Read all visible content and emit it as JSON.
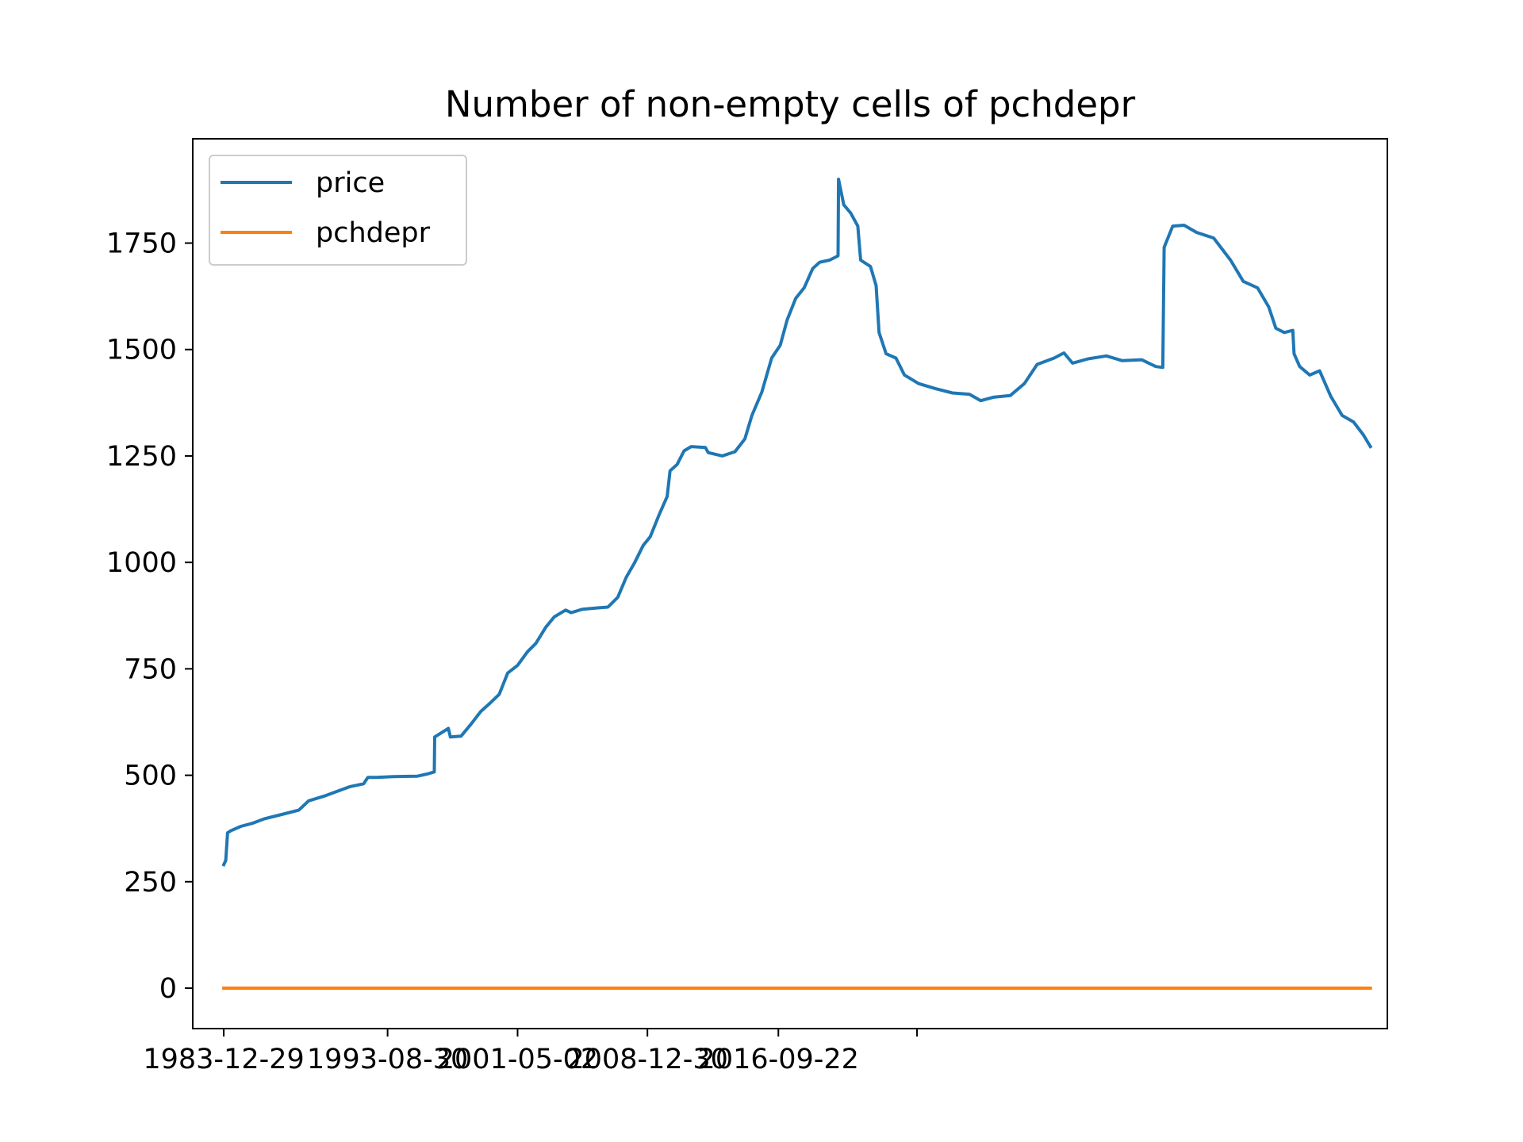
{
  "chart_data": {
    "type": "line",
    "title": "Number of non-empty cells of pchdepr",
    "xlabel": "",
    "ylabel": "",
    "x_ticks": [
      "1983-12-29",
      "1993-08-30",
      "2001-05-02",
      "2008-12-30",
      "2016-09-22",
      ""
    ],
    "y_ticks": [
      0,
      250,
      500,
      750,
      1000,
      1250,
      1500,
      1750
    ],
    "ylim": [
      -95,
      1995
    ],
    "grid": false,
    "legend_position": "top-left",
    "series": [
      {
        "name": "price",
        "color": "#1f77b4",
        "points": [
          [
            "1983-12-29",
            290
          ],
          [
            "1984-02-10",
            300
          ],
          [
            "1984-03-20",
            365
          ],
          [
            "1984-06-01",
            370
          ],
          [
            "1985-01-01",
            380
          ],
          [
            "1985-09-01",
            387
          ],
          [
            "1986-06-01",
            398
          ],
          [
            "1987-06-01",
            408
          ],
          [
            "1988-06-01",
            418
          ],
          [
            "1989-01-01",
            440
          ],
          [
            "1990-01-01",
            452
          ],
          [
            "1990-09-01",
            462
          ],
          [
            "1991-06-01",
            473
          ],
          [
            "1992-04-01",
            480
          ],
          [
            "1992-07-01",
            495
          ],
          [
            "1993-01-01",
            495
          ],
          [
            "1994-01-01",
            497
          ],
          [
            "1995-06-01",
            498
          ],
          [
            "1996-01-01",
            503
          ],
          [
            "1996-06-01",
            508
          ],
          [
            "1996-06-10",
            590
          ],
          [
            "1997-04-01",
            610
          ],
          [
            "1997-05-15",
            590
          ],
          [
            "1998-01-01",
            592
          ],
          [
            "1998-08-01",
            620
          ],
          [
            "1999-03-01",
            650
          ],
          [
            "1999-09-01",
            668
          ],
          [
            "2000-04-01",
            690
          ],
          [
            "2000-10-01",
            740
          ],
          [
            "2001-05-01",
            758
          ],
          [
            "2001-12-01",
            790
          ],
          [
            "2002-06-01",
            810
          ],
          [
            "2003-01-01",
            848
          ],
          [
            "2003-07-01",
            872
          ],
          [
            "2004-03-01",
            888
          ],
          [
            "2004-07-01",
            882
          ],
          [
            "2005-03-01",
            890
          ],
          [
            "2006-01-01",
            893
          ],
          [
            "2006-09-01",
            895
          ],
          [
            "2007-04-01",
            918
          ],
          [
            "2007-10-01",
            965
          ],
          [
            "2008-04-01",
            1000
          ],
          [
            "2008-10-01",
            1040
          ],
          [
            "2009-03-01",
            1060
          ],
          [
            "2009-09-01",
            1110
          ],
          [
            "2010-03-01",
            1155
          ],
          [
            "2010-05-01",
            1215
          ],
          [
            "2010-10-01",
            1230
          ],
          [
            "2011-03-01",
            1262
          ],
          [
            "2011-08-01",
            1272
          ],
          [
            "2012-06-01",
            1270
          ],
          [
            "2012-08-01",
            1258
          ],
          [
            "2013-06-01",
            1250
          ],
          [
            "2014-03-01",
            1260
          ],
          [
            "2014-10-01",
            1290
          ],
          [
            "2015-03-01",
            1345
          ],
          [
            "2015-10-01",
            1400
          ],
          [
            "2016-05-01",
            1480
          ],
          [
            "2016-11-01",
            1510
          ],
          [
            "2017-04-01",
            1570
          ],
          [
            "2017-10-01",
            1620
          ],
          [
            "2018-04-01",
            1645
          ],
          [
            "2018-10-01",
            1690
          ],
          [
            "2019-03-01",
            1705
          ],
          [
            "2019-10-01",
            1710
          ],
          [
            "2020-04-01",
            1720
          ],
          [
            "2020-04-10",
            1900
          ],
          [
            "2020-08-01",
            1840
          ],
          [
            "2021-01-01",
            1820
          ],
          [
            "2021-06-01",
            1790
          ],
          [
            "2021-08-01",
            1710
          ],
          [
            "2022-03-01",
            1695
          ],
          [
            "2022-07-01",
            1650
          ],
          [
            "2022-09-01",
            1540
          ],
          [
            "2023-02-01",
            1490
          ],
          [
            "2023-09-01",
            1480
          ],
          [
            "2024-03-01",
            1440
          ],
          [
            "2025-01-01",
            1420
          ],
          [
            "2026-01-01",
            1408
          ],
          [
            "2027-01-01",
            1398
          ],
          [
            "2028-01-01",
            1395
          ],
          [
            "2028-09-01",
            1380
          ],
          [
            "2029-06-01",
            1388
          ],
          [
            "2030-06-01",
            1392
          ],
          [
            "2031-04-01",
            1420
          ],
          [
            "2032-01-01",
            1465
          ],
          [
            "2033-01-01",
            1480
          ],
          [
            "2033-08-01",
            1492
          ],
          [
            "2034-02-01",
            1468
          ],
          [
            "2035-01-01",
            1478
          ],
          [
            "2036-02-01",
            1485
          ],
          [
            "2037-01-01",
            1474
          ],
          [
            "2038-03-01",
            1476
          ],
          [
            "2039-01-01",
            1460
          ],
          [
            "2039-06-01",
            1458
          ],
          [
            "2039-07-01",
            1740
          ],
          [
            "2040-01-01",
            1790
          ],
          [
            "2040-09-01",
            1792
          ],
          [
            "2041-06-01",
            1775
          ],
          [
            "2042-06-01",
            1762
          ],
          [
            "2043-06-01",
            1710
          ],
          [
            "2044-03-01",
            1660
          ],
          [
            "2045-01-01",
            1645
          ],
          [
            "2045-09-01",
            1600
          ],
          [
            "2046-02-01",
            1550
          ],
          [
            "2046-08-01",
            1540
          ],
          [
            "2047-02-01",
            1545
          ],
          [
            "2047-03-01",
            1490
          ],
          [
            "2047-07-01",
            1460
          ],
          [
            "2048-02-01",
            1440
          ],
          [
            "2048-09-01",
            1450
          ],
          [
            "2049-05-01",
            1390
          ],
          [
            "2050-01-01",
            1345
          ],
          [
            "2050-09-01",
            1330
          ],
          [
            "2051-04-01",
            1300
          ],
          [
            "2051-09-01",
            1272
          ]
        ]
      },
      {
        "name": "pchdepr",
        "color": "#ff7f0e",
        "points": [
          [
            "1983-12-29",
            0
          ],
          [
            "2051-09-01",
            0
          ]
        ]
      }
    ]
  }
}
